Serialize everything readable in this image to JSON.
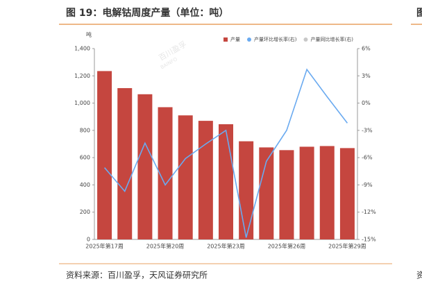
{
  "chart_data": {
    "type": "bar",
    "title": "图 19：电解钴周度产量（单位：吨）",
    "y_unit": "吨",
    "source": "资料来源：百川盈孚，天风证券研究所",
    "watermark": [
      "百川盈孚",
      "BAINFO"
    ],
    "next_panel": [
      "图",
      "资"
    ],
    "categories": [
      "2025年第17周",
      null,
      null,
      "2025年第20周",
      null,
      null,
      "2025年第23周",
      null,
      null,
      "2025年第26周",
      null,
      null,
      "2025年第29周"
    ],
    "series": [
      {
        "name": "产量",
        "color": "#c5463f",
        "type": "bar",
        "values": [
          1235,
          1110,
          1065,
          970,
          910,
          870,
          845,
          720,
          675,
          655,
          680,
          685,
          670
        ]
      },
      {
        "name": "产量环比增长率(右)",
        "color": "#6aaaf0",
        "type": "line",
        "axis": "y2",
        "values": [
          -7.1,
          -9.7,
          -4.4,
          -9.0,
          -6.1,
          -4.5,
          -3.0,
          -14.8,
          -6.4,
          -3.0,
          3.7,
          0.7,
          -2.2
        ]
      },
      {
        "name": "产量同比增长率(右)",
        "color": "#c8c8c8",
        "type": "line",
        "axis": "y2",
        "values": [
          null,
          null,
          null,
          null,
          null,
          null,
          null,
          null,
          null,
          null,
          null,
          null,
          null
        ]
      }
    ],
    "ylim": [
      0,
      1400
    ],
    "yticks": [
      0,
      200,
      400,
      600,
      800,
      {
        "value": 1000,
        "label": "1,000"
      },
      {
        "value": 1200,
        "label": "1,200"
      },
      {
        "value": 1400,
        "label": "1,400"
      }
    ],
    "y2lim": [
      -15,
      6
    ],
    "y2ticks": [
      {
        "value": -15,
        "label": "-15%"
      },
      {
        "value": -12,
        "label": "-12%"
      },
      {
        "value": -9,
        "label": "-9%"
      },
      {
        "value": -6,
        "label": "-6%"
      },
      {
        "value": -3,
        "label": "-3%"
      },
      {
        "value": 0,
        "label": "0%"
      },
      {
        "value": 3,
        "label": "3%"
      },
      {
        "value": 6,
        "label": "6%"
      }
    ],
    "grid": false
  }
}
